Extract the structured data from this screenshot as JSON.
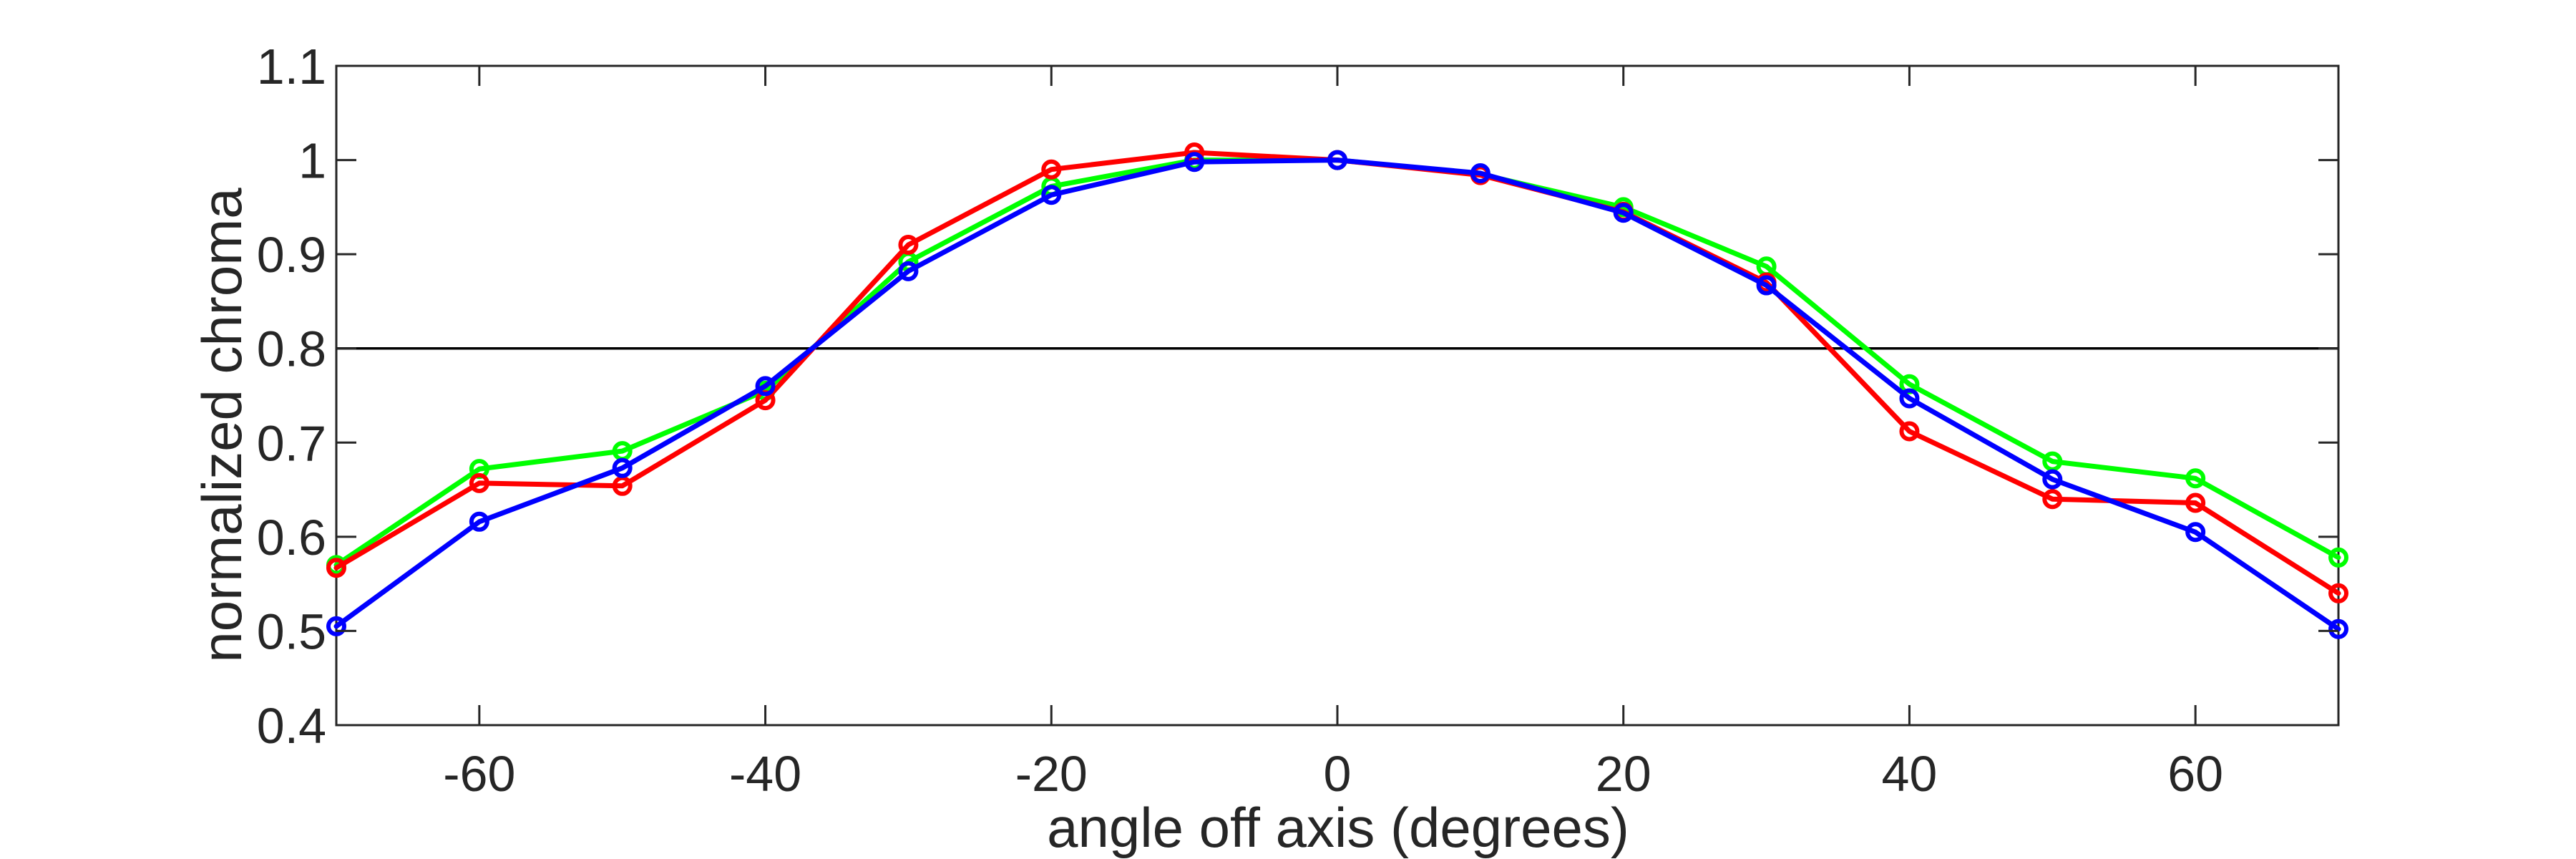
{
  "chart_data": {
    "type": "line",
    "title": "",
    "xlabel": "angle off axis (degrees)",
    "ylabel": "normalized chroma",
    "xlim": [
      -70,
      70
    ],
    "ylim": [
      0.4,
      1.1
    ],
    "xticks": [
      -60,
      -40,
      -20,
      0,
      20,
      40,
      60
    ],
    "xtick_labels": [
      "-60",
      "-40",
      "-20",
      "0",
      "20",
      "40",
      "60"
    ],
    "yticks": [
      0.4,
      0.5,
      0.6,
      0.7,
      0.8,
      0.9,
      1.0,
      1.1
    ],
    "ytick_labels": [
      "0.4",
      "0.5",
      "0.6",
      "0.7",
      "0.8",
      "0.9",
      "1",
      "1.1"
    ],
    "grid": false,
    "legend": "none",
    "reference_line": {
      "y": 0.8,
      "color": "#000000"
    },
    "marker": "circle",
    "x": [
      -70,
      -60,
      -50,
      -40,
      -30,
      -20,
      -10,
      0,
      10,
      20,
      30,
      40,
      50,
      60,
      70
    ],
    "series": [
      {
        "color": "#00ff00",
        "values": [
          0.57,
          0.672,
          0.691,
          0.755,
          0.892,
          0.972,
          1.0,
          1.0,
          0.985,
          0.95,
          0.887,
          0.762,
          0.68,
          0.662,
          0.578
        ]
      },
      {
        "color": "#ff0000",
        "values": [
          0.567,
          0.657,
          0.654,
          0.745,
          0.91,
          0.99,
          1.008,
          1.0,
          0.984,
          0.945,
          0.87,
          0.712,
          0.64,
          0.636,
          0.54
        ]
      },
      {
        "color": "#0000ff",
        "values": [
          0.505,
          0.616,
          0.673,
          0.76,
          0.882,
          0.963,
          0.998,
          1.0,
          0.986,
          0.944,
          0.867,
          0.747,
          0.661,
          0.605,
          0.502
        ]
      }
    ]
  }
}
